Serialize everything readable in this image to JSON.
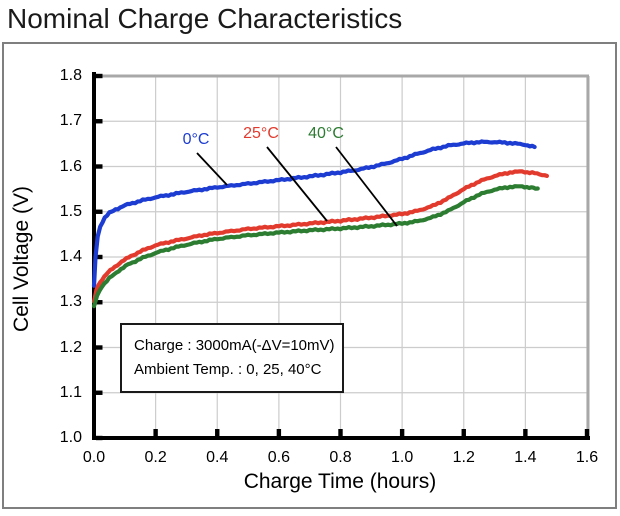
{
  "page": {
    "title": "Nominal Charge Characteristics"
  },
  "chart_data": {
    "type": "line",
    "title": "Nominal Charge Characteristics",
    "xlabel": "Charge Time (hours)",
    "ylabel": "Cell Voltage (V)",
    "xlim": [
      0.0,
      1.6
    ],
    "ylim": [
      1.0,
      1.8
    ],
    "grid": true,
    "x_ticks": [
      {
        "value": 0.0,
        "label": "0.0"
      },
      {
        "value": 0.2,
        "label": "0.2"
      },
      {
        "value": 0.4,
        "label": "0.4"
      },
      {
        "value": 0.6,
        "label": "0.6"
      },
      {
        "value": 0.8,
        "label": "0.8"
      },
      {
        "value": 1.0,
        "label": "1.0"
      },
      {
        "value": 1.2,
        "label": "1.2"
      },
      {
        "value": 1.4,
        "label": "1.4"
      },
      {
        "value": 1.6,
        "label": "1.6"
      }
    ],
    "y_ticks": [
      {
        "value": 1.0,
        "label": "1.0"
      },
      {
        "value": 1.1,
        "label": "1.1"
      },
      {
        "value": 1.2,
        "label": "1.2"
      },
      {
        "value": 1.3,
        "label": "1.3"
      },
      {
        "value": 1.4,
        "label": "1.4"
      },
      {
        "value": 1.5,
        "label": "1.5"
      },
      {
        "value": 1.6,
        "label": "1.6"
      },
      {
        "value": 1.7,
        "label": "1.7"
      },
      {
        "value": 1.8,
        "label": "1.8"
      }
    ],
    "legend": [
      {
        "label": "0°C",
        "color": "#1c3cd2"
      },
      {
        "label": "25°C",
        "color": "#e23b2e"
      },
      {
        "label": "40°C",
        "color": "#2c7c31"
      }
    ],
    "annotation": {
      "line1": "Charge : 3000mA(-ΔV=10mV)",
      "line2": "Ambient Temp. : 0, 25, 40°C"
    },
    "series": [
      {
        "name": "0°C",
        "color": "#1c3cd2",
        "points": [
          [
            0.0,
            1.335
          ],
          [
            0.005,
            1.4
          ],
          [
            0.012,
            1.445
          ],
          [
            0.02,
            1.468
          ],
          [
            0.035,
            1.487
          ],
          [
            0.05,
            1.497
          ],
          [
            0.07,
            1.505
          ],
          [
            0.1,
            1.514
          ],
          [
            0.15,
            1.524
          ],
          [
            0.2,
            1.532
          ],
          [
            0.25,
            1.538
          ],
          [
            0.3,
            1.544
          ],
          [
            0.35,
            1.549
          ],
          [
            0.4,
            1.554
          ],
          [
            0.5,
            1.562
          ],
          [
            0.6,
            1.57
          ],
          [
            0.7,
            1.578
          ],
          [
            0.8,
            1.587
          ],
          [
            0.85,
            1.592
          ],
          [
            0.9,
            1.599
          ],
          [
            0.95,
            1.607
          ],
          [
            1.0,
            1.617
          ],
          [
            1.05,
            1.628
          ],
          [
            1.1,
            1.638
          ],
          [
            1.15,
            1.646
          ],
          [
            1.2,
            1.651
          ],
          [
            1.25,
            1.654
          ],
          [
            1.3,
            1.654
          ],
          [
            1.35,
            1.652
          ],
          [
            1.4,
            1.648
          ],
          [
            1.43,
            1.643
          ]
        ]
      },
      {
        "name": "25°C",
        "color": "#e23b2e",
        "points": [
          [
            0.0,
            1.3
          ],
          [
            0.008,
            1.328
          ],
          [
            0.02,
            1.345
          ],
          [
            0.04,
            1.362
          ],
          [
            0.06,
            1.374
          ],
          [
            0.09,
            1.39
          ],
          [
            0.12,
            1.402
          ],
          [
            0.15,
            1.412
          ],
          [
            0.2,
            1.426
          ],
          [
            0.25,
            1.434
          ],
          [
            0.3,
            1.441
          ],
          [
            0.35,
            1.448
          ],
          [
            0.4,
            1.453
          ],
          [
            0.5,
            1.462
          ],
          [
            0.6,
            1.468
          ],
          [
            0.7,
            1.474
          ],
          [
            0.8,
            1.48
          ],
          [
            0.9,
            1.487
          ],
          [
            1.0,
            1.495
          ],
          [
            1.05,
            1.502
          ],
          [
            1.1,
            1.513
          ],
          [
            1.15,
            1.53
          ],
          [
            1.2,
            1.55
          ],
          [
            1.25,
            1.567
          ],
          [
            1.3,
            1.579
          ],
          [
            1.35,
            1.587
          ],
          [
            1.39,
            1.589
          ],
          [
            1.43,
            1.585
          ],
          [
            1.47,
            1.58
          ]
        ]
      },
      {
        "name": "40°C",
        "color": "#2c7c31",
        "points": [
          [
            0.0,
            1.29
          ],
          [
            0.01,
            1.315
          ],
          [
            0.025,
            1.335
          ],
          [
            0.05,
            1.353
          ],
          [
            0.08,
            1.37
          ],
          [
            0.11,
            1.383
          ],
          [
            0.15,
            1.396
          ],
          [
            0.2,
            1.409
          ],
          [
            0.25,
            1.419
          ],
          [
            0.3,
            1.427
          ],
          [
            0.35,
            1.434
          ],
          [
            0.4,
            1.44
          ],
          [
            0.5,
            1.448
          ],
          [
            0.6,
            1.454
          ],
          [
            0.7,
            1.459
          ],
          [
            0.8,
            1.463
          ],
          [
            0.9,
            1.468
          ],
          [
            1.0,
            1.474
          ],
          [
            1.05,
            1.479
          ],
          [
            1.1,
            1.488
          ],
          [
            1.15,
            1.502
          ],
          [
            1.2,
            1.521
          ],
          [
            1.25,
            1.538
          ],
          [
            1.3,
            1.549
          ],
          [
            1.35,
            1.555
          ],
          [
            1.39,
            1.556
          ],
          [
            1.42,
            1.553
          ],
          [
            1.44,
            1.55
          ]
        ]
      }
    ],
    "style_colors": {
      "gridline": "#cccccc",
      "border_gray": "#a8a8a8",
      "axis_black": "#000000",
      "frame": "#7f7f7f"
    }
  }
}
